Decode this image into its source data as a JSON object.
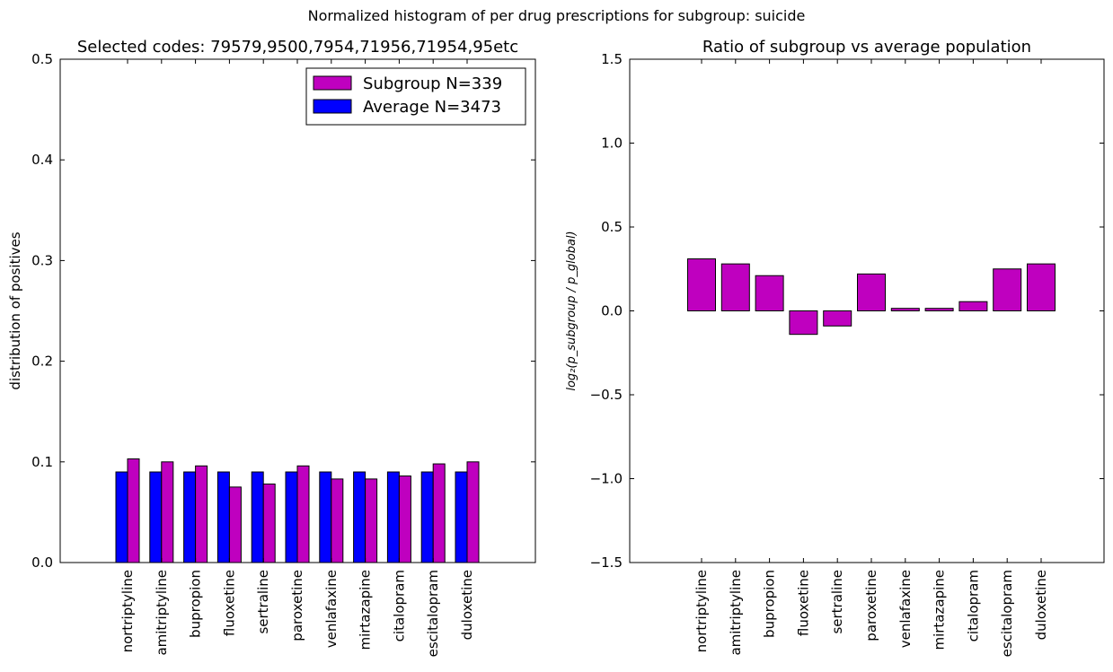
{
  "figure": {
    "suptitle": "Normalized histogram of per drug prescriptions for subgroup: suicide",
    "colors": {
      "subgroup": "#bf00bf",
      "average": "#0000ff"
    }
  },
  "chart_data": [
    {
      "type": "bar",
      "title": "Selected codes: 79579,9500,7954,71956,71954,95etc",
      "xlabel": "",
      "ylabel": "distribution of positives",
      "ylim": [
        0,
        0.5
      ],
      "yticks": [
        "0.0",
        "0.1",
        "0.2",
        "0.3",
        "0.4",
        "0.5"
      ],
      "legend_position": "top-right",
      "categories": [
        "nortriptyline",
        "amitriptyline",
        "bupropion",
        "fluoxetine",
        "sertraline",
        "paroxetine",
        "venlafaxine",
        "mirtazapine",
        "citalopram",
        "escitalopram",
        "duloxetine"
      ],
      "series": [
        {
          "name": "Subgroup N=339",
          "color": "#bf00bf",
          "values": [
            0.103,
            0.1,
            0.096,
            0.075,
            0.078,
            0.096,
            0.083,
            0.083,
            0.086,
            0.098,
            0.1
          ]
        },
        {
          "name": "Average N=3473",
          "color": "#0000ff",
          "values": [
            0.09,
            0.09,
            0.09,
            0.09,
            0.09,
            0.09,
            0.09,
            0.09,
            0.09,
            0.09,
            0.09
          ]
        }
      ]
    },
    {
      "type": "bar",
      "title": "Ratio of subgroup vs average population",
      "xlabel": "",
      "ylabel": "log₂(p_subgroup / p_global)",
      "ylim": [
        -1.5,
        1.5
      ],
      "yticks": [
        "−1.5",
        "−1.0",
        "−0.5",
        "0.0",
        "0.5",
        "1.0",
        "1.5"
      ],
      "categories": [
        "nortriptyline",
        "amitriptyline",
        "bupropion",
        "fluoxetine",
        "sertraline",
        "paroxetine",
        "venlafaxine",
        "mirtazapine",
        "citalopram",
        "escitalopram",
        "duloxetine"
      ],
      "series": [
        {
          "color": "#bf00bf",
          "values": [
            0.31,
            0.28,
            0.21,
            -0.14,
            -0.09,
            0.22,
            0.015,
            0.015,
            0.055,
            0.25,
            0.28
          ]
        }
      ]
    }
  ]
}
